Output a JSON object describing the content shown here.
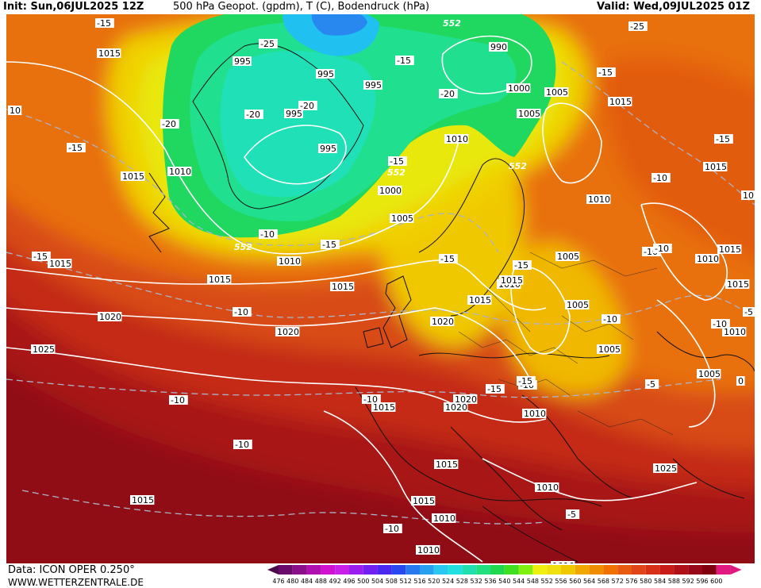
{
  "header": {
    "init": "Init: Sun,06JUL2025 12Z",
    "title": "500 hPa Geopot. (gpdm), T (C), Bodendruck (hPa)",
    "valid": "Valid: Wed,09JUL2025 01Z"
  },
  "footer": {
    "data_source": "Data: ICON OPER 0.250°",
    "website": "WWW.WETTERZENTRALE.DE"
  },
  "legend": {
    "values": [
      "476",
      "480",
      "484",
      "488",
      "492",
      "496",
      "500",
      "504",
      "508",
      "512",
      "516",
      "520",
      "524",
      "528",
      "532",
      "536",
      "540",
      "544",
      "548",
      "552",
      "556",
      "560",
      "564",
      "568",
      "572",
      "576",
      "580",
      "584",
      "588",
      "592",
      "596",
      "600"
    ],
    "colors": [
      "#4a0a4a",
      "#6a0a6a",
      "#8a0f8a",
      "#b010b0",
      "#d012d0",
      "#c820e8",
      "#9a1ef0",
      "#7020f0",
      "#4a28f0",
      "#2848f0",
      "#2878f0",
      "#28a0f0",
      "#28c8f0",
      "#20e0e0",
      "#20e0b0",
      "#20e080",
      "#20d850",
      "#40e020",
      "#80f010",
      "#f0f010",
      "#f0e010",
      "#f0c800",
      "#f0a800",
      "#f08c00",
      "#f07000",
      "#e85a10",
      "#e04418",
      "#d83018",
      "#c81c18",
      "#b01018",
      "#980818",
      "#800010",
      "#e01880"
    ]
  },
  "map_labels": {
    "isobars": [
      "1015",
      "1010",
      "1000",
      "995",
      "995",
      "995",
      "995",
      "995",
      "990",
      "1000",
      "1005",
      "1005",
      "1015",
      "1010",
      "1005",
      "1010",
      "1015",
      "1015",
      "1010",
      "1015",
      "1020",
      "1025",
      "1015",
      "1010",
      "1015",
      "1020",
      "1015",
      "1015",
      "1005",
      "1005",
      "1005",
      "1005",
      "1010",
      "1010",
      "1015",
      "1020",
      "1020",
      "1015",
      "1010",
      "1015",
      "1015",
      "1015",
      "1010",
      "1010",
      "1025",
      "1010",
      "1010",
      "1015",
      "1020",
      "1010"
    ],
    "temps": [
      "-15",
      "-25",
      "-15",
      "-25",
      "-20",
      "-20",
      "-20",
      "-20",
      "-15",
      "-15",
      "-15",
      "-15",
      "-15",
      "-10",
      "-15",
      "-15",
      "-10",
      "-10",
      "-10",
      "-10",
      "-10",
      "-10",
      "-10",
      "-15",
      "-10",
      "-5",
      "-10",
      "-10",
      "-5",
      "-15",
      "-15",
      "0",
      "10",
      "-10",
      "-5"
    ],
    "geopotential": [
      "552",
      "552",
      "552",
      "552"
    ]
  }
}
